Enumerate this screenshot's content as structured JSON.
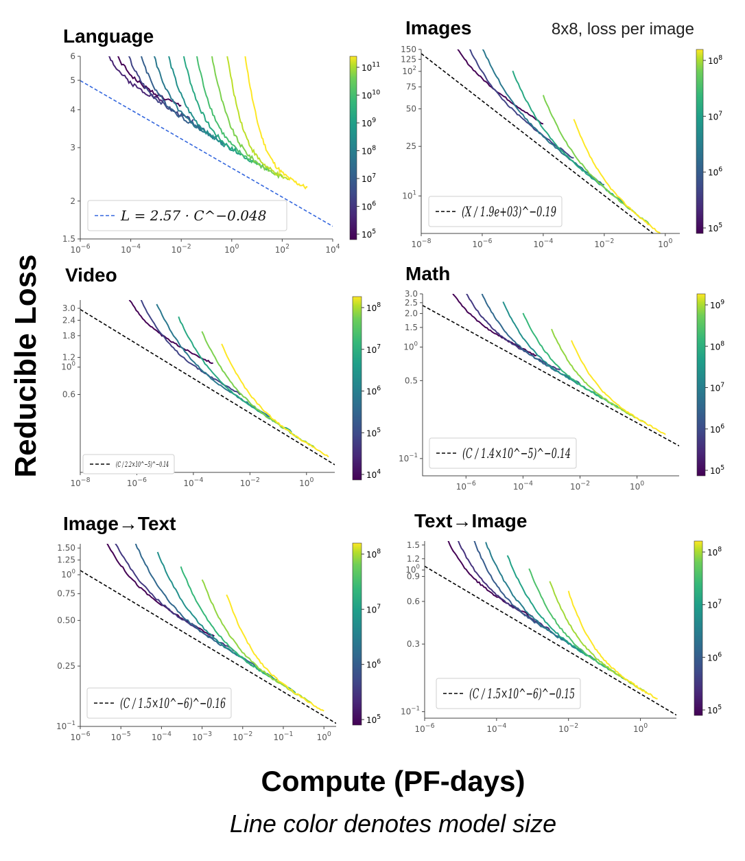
{
  "figure": {
    "ylabel": "Reducible Loss",
    "xlabel": "Compute (PF-days)",
    "caption": "Line color denotes model size"
  },
  "chart_data": [
    {
      "id": "language",
      "type": "line",
      "title": "Language",
      "subtitle": "",
      "xscale": "log",
      "yscale": "log",
      "xlim": [
        1e-06,
        10000.0
      ],
      "ylim": [
        1.5,
        6
      ],
      "xticks": [
        1e-06,
        0.0001,
        0.01,
        1,
        100.0,
        10000.0
      ],
      "xtick_labels": [
        "10^-6",
        "10^-4",
        "10^-2",
        "10^0",
        "10^2",
        "10^4"
      ],
      "yticks": [
        1.5,
        2,
        3,
        4,
        5,
        6
      ],
      "ytick_labels": [
        "1.5",
        "2",
        "3",
        "4",
        "5",
        "6"
      ],
      "fit": {
        "a": 2.57,
        "C0": 1,
        "exponent": -0.048,
        "color": "#3366dd",
        "label": "L = 2.57 · C^−0.048"
      },
      "colorbar": {
        "ticks": [
          "10^5",
          "10^6",
          "10^7",
          "10^8",
          "10^9",
          "10^10",
          "10^11"
        ]
      },
      "series_offsets": [
        0.55,
        0.45,
        0.4,
        0.36,
        0.33,
        0.31,
        0.3,
        0.3,
        0.31,
        0.33,
        0.38
      ],
      "series_ranges": [
        [
          1.5e-06,
          0.01
        ],
        [
          1e-06,
          0.002
        ],
        [
          1e-05,
          0.03
        ],
        [
          5e-05,
          0.1
        ],
        [
          0.0002,
          0.5
        ],
        [
          0.001,
          2
        ],
        [
          0.005,
          10
        ],
        [
          0.02,
          30
        ],
        [
          0.1,
          100
        ],
        [
          0.5,
          200
        ],
        [
          3,
          1000
        ]
      ]
    },
    {
      "id": "images",
      "type": "line",
      "title": "Images",
      "subtitle": "8x8, loss per image",
      "xscale": "log",
      "yscale": "log",
      "xlim": [
        1e-08,
        3
      ],
      "ylim": [
        5,
        150
      ],
      "xticks": [
        1e-08,
        1e-06,
        0.0001,
        0.01,
        1
      ],
      "xtick_labels": [
        "10^-8",
        "10^-6",
        "10^-4",
        "10^-2",
        "10^0"
      ],
      "yticks": [
        10,
        25,
        50,
        75,
        100,
        125,
        150
      ],
      "ytick_labels": [
        "10^1",
        "25",
        "50",
        "75",
        "10^2",
        "125",
        "150"
      ],
      "fit": {
        "a": 1,
        "C0": 1900,
        "exponent": -0.19,
        "color": "#000000",
        "label": "(X / 1.9e+03)^−0.19"
      },
      "colorbar": {
        "ticks": [
          "10^5",
          "10^6",
          "10^7",
          "10^8"
        ]
      },
      "series_offsets": [
        1.1,
        0.55,
        0.4,
        0.3,
        0.24,
        0.2
      ],
      "series_ranges": [
        [
          3e-08,
          0.0001
        ],
        [
          2e-07,
          0.001
        ],
        [
          1e-06,
          0.01
        ],
        [
          1e-05,
          0.05
        ],
        [
          0.0001,
          0.3
        ],
        [
          0.001,
          1.5
        ]
      ]
    },
    {
      "id": "video",
      "type": "line",
      "title": "Video",
      "subtitle": "",
      "xscale": "log",
      "yscale": "log",
      "xlim": [
        1e-08,
        10
      ],
      "ylim": [
        0.14,
        3.5
      ],
      "xticks": [
        1e-08,
        1e-06,
        0.0001,
        0.01,
        1
      ],
      "xtick_labels": [
        "10^-8",
        "10^-6",
        "10^-4",
        "10^-2",
        "10^0"
      ],
      "yticks": [
        0.6,
        1.0,
        1.2,
        1.8,
        2.4,
        3.0
      ],
      "ytick_labels": [
        "0.6",
        "10^0",
        "1.2",
        "1.8",
        "2.4",
        "3.0"
      ],
      "fit": {
        "a": 1,
        "C0": 2.2e-05,
        "exponent": -0.14,
        "color": "#000000",
        "label": "(C / 2.2×10^−5)^−0.14"
      },
      "colorbar": {
        "ticks": [
          "10^4",
          "10^5",
          "10^6",
          "10^7",
          "10^8"
        ]
      },
      "series_offsets": [
        1.3,
        0.55,
        0.35,
        0.25,
        0.18,
        0.15
      ],
      "series_ranges": [
        [
          2e-07,
          0.0005
        ],
        [
          1e-06,
          0.005
        ],
        [
          5e-06,
          0.05
        ],
        [
          3e-05,
          0.3
        ],
        [
          0.0002,
          2
        ],
        [
          0.001,
          6
        ]
      ]
    },
    {
      "id": "math",
      "type": "line",
      "title": "Math",
      "subtitle": "",
      "xscale": "log",
      "yscale": "log",
      "xlim": [
        3e-08,
        30
      ],
      "ylim": [
        0.07,
        3.0
      ],
      "xticks": [
        1e-06,
        0.0001,
        0.01,
        1
      ],
      "xtick_labels": [
        "10^-6",
        "10^-4",
        "10^-2",
        "10^0"
      ],
      "yticks": [
        0.1,
        0.5,
        1.0,
        1.5,
        2.0,
        2.5,
        3.0
      ],
      "ytick_labels": [
        "10^-1",
        "0.5",
        "10^0",
        "1.5",
        "2.0",
        "2.5",
        "3.0"
      ],
      "fit": {
        "a": 1,
        "C0": 1.4e-05,
        "exponent": -0.14,
        "color": "#000000",
        "label": "(C / 1.4×10^−5)^−0.14"
      },
      "colorbar": {
        "ticks": [
          "10^5",
          "10^6",
          "10^7",
          "10^8",
          "10^9"
        ]
      },
      "series_offsets": [
        0.55,
        0.45,
        0.35,
        0.28,
        0.22,
        0.18,
        0.16
      ],
      "series_ranges": [
        [
          1e-07,
          0.0003
        ],
        [
          5e-07,
          0.002
        ],
        [
          3e-06,
          0.01
        ],
        [
          2e-05,
          0.06
        ],
        [
          0.0001,
          0.4
        ],
        [
          0.001,
          2
        ],
        [
          0.005,
          10
        ]
      ]
    },
    {
      "id": "image-to-text",
      "type": "line",
      "title": "Image→Text",
      "subtitle": "",
      "xscale": "log",
      "yscale": "log",
      "xlim": [
        1e-06,
        2
      ],
      "ylim": [
        0.1,
        1.6
      ],
      "xticks": [
        1e-06,
        1e-05,
        0.0001,
        0.001,
        0.01,
        0.1,
        1
      ],
      "xtick_labels": [
        "10^-6",
        "10^-5",
        "10^-4",
        "10^-3",
        "10^-2",
        "10^-1",
        "10^0"
      ],
      "yticks": [
        0.1,
        0.25,
        0.5,
        0.75,
        1.0,
        1.25,
        1.5
      ],
      "ytick_labels": [
        "10^-1",
        "0.25",
        "0.50",
        "0.75",
        "10^0",
        "1.25",
        "1.50"
      ],
      "fit": {
        "a": 1,
        "C0": 1.5e-06,
        "exponent": -0.16,
        "color": "#000000",
        "label": "(C / 1.5×10^−6)^−0.16"
      },
      "colorbar": {
        "ticks": [
          "10^5",
          "10^6",
          "10^7",
          "10^8"
        ]
      },
      "series_offsets": [
        0.45,
        0.38,
        0.3,
        0.25,
        0.2,
        0.17,
        0.15
      ],
      "series_ranges": [
        [
          2e-06,
          0.002
        ],
        [
          4e-06,
          0.006
        ],
        [
          2e-05,
          0.02
        ],
        [
          8e-05,
          0.08
        ],
        [
          0.0003,
          0.2
        ],
        [
          0.001,
          0.5
        ],
        [
          0.004,
          1
        ]
      ]
    },
    {
      "id": "text-to-image",
      "type": "line",
      "title": "Text→Image",
      "subtitle": "",
      "xscale": "log",
      "yscale": "log",
      "xlim": [
        1e-06,
        10
      ],
      "ylim": [
        0.09,
        1.6
      ],
      "xticks": [
        1e-06,
        0.0001,
        0.01,
        1
      ],
      "xtick_labels": [
        "10^-6",
        "10^-4",
        "10^-2",
        "10^0"
      ],
      "yticks": [
        0.1,
        0.3,
        0.6,
        0.9,
        1.0,
        1.2,
        1.5
      ],
      "ytick_labels": [
        "10^-1",
        "0.3",
        "0.6",
        "0.9",
        "10^0",
        "1.2",
        "1.5"
      ],
      "fit": {
        "a": 1,
        "C0": 1.5e-06,
        "exponent": -0.15,
        "color": "#000000",
        "label": "(C / 1.5×10^−6)^−0.15"
      },
      "colorbar": {
        "ticks": [
          "10^5",
          "10^6",
          "10^7",
          "10^8"
        ]
      },
      "series_offsets": [
        0.45,
        0.38,
        0.3,
        0.25,
        0.21,
        0.18,
        0.16,
        0.15
      ],
      "series_ranges": [
        [
          2e-06,
          0.001
        ],
        [
          5e-06,
          0.003
        ],
        [
          2e-05,
          0.01
        ],
        [
          5e-05,
          0.05
        ],
        [
          0.0002,
          0.2
        ],
        [
          0.0008,
          0.6
        ],
        [
          0.003,
          1.5
        ],
        [
          0.01,
          3
        ]
      ]
    }
  ]
}
